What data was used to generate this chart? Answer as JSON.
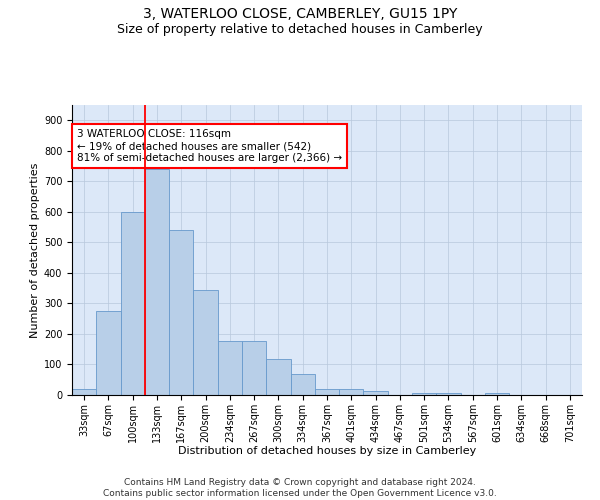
{
  "title_line1": "3, WATERLOO CLOSE, CAMBERLEY, GU15 1PY",
  "title_line2": "Size of property relative to detached houses in Camberley",
  "xlabel": "Distribution of detached houses by size in Camberley",
  "ylabel": "Number of detached properties",
  "categories": [
    "33sqm",
    "67sqm",
    "100sqm",
    "133sqm",
    "167sqm",
    "200sqm",
    "234sqm",
    "267sqm",
    "300sqm",
    "334sqm",
    "367sqm",
    "401sqm",
    "434sqm",
    "467sqm",
    "501sqm",
    "534sqm",
    "567sqm",
    "601sqm",
    "634sqm",
    "668sqm",
    "701sqm"
  ],
  "values": [
    20,
    275,
    600,
    740,
    540,
    345,
    178,
    178,
    118,
    68,
    20,
    20,
    13,
    0,
    8,
    8,
    0,
    8,
    0,
    0,
    0
  ],
  "bar_color": "#b8cfe8",
  "bar_edge_color": "#6699cc",
  "ylim": [
    0,
    950
  ],
  "yticks": [
    0,
    100,
    200,
    300,
    400,
    500,
    600,
    700,
    800,
    900
  ],
  "red_line_x": 2.5,
  "annotation_line1": "3 WATERLOO CLOSE: 116sqm",
  "annotation_line2": "← 19% of detached houses are smaller (542)",
  "annotation_line3": "81% of semi-detached houses are larger (2,366) →",
  "footer_line1": "Contains HM Land Registry data © Crown copyright and database right 2024.",
  "footer_line2": "Contains public sector information licensed under the Open Government Licence v3.0.",
  "bg_color": "#dce8f8",
  "grid_color": "#b8c8dc",
  "title_fontsize": 10,
  "subtitle_fontsize": 9,
  "axis_label_fontsize": 8,
  "tick_fontsize": 7,
  "annotation_fontsize": 7.5,
  "footer_fontsize": 6.5
}
